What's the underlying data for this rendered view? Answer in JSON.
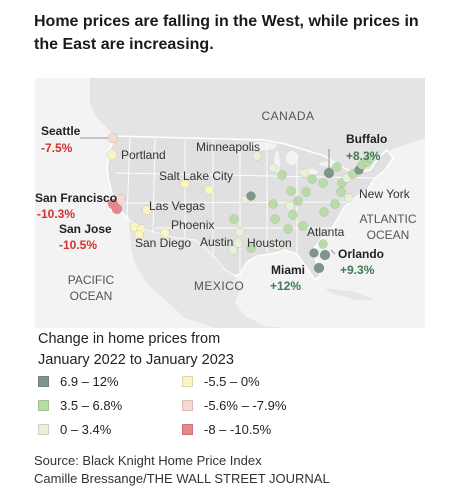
{
  "title": "Home prices are falling in the West, while prices in the East are increasing.",
  "regions": {
    "canada": "CANADA",
    "mexico": "MEXICO",
    "pacific_1": "PACIFIC",
    "pacific_2": "OCEAN",
    "atlantic_1": "ATLANTIC",
    "atlantic_2": "OCEAN"
  },
  "highlighted_cities": [
    {
      "name": "Seattle",
      "change": "-7.5%"
    },
    {
      "name": "San Francisco",
      "change": "-10.3%"
    },
    {
      "name": "San Jose",
      "change": "-10.5%"
    },
    {
      "name": "Buffalo",
      "change": "+8.3%"
    },
    {
      "name": "Orlando",
      "change": "+9.3%"
    },
    {
      "name": "Miami",
      "change": "+12%"
    }
  ],
  "city_labels": [
    "Portland",
    "Salt Lake City",
    "Las Vegas",
    "Phoenix",
    "San Diego",
    "Minneapolis",
    "Austin",
    "Houston",
    "Atlanta",
    "New York"
  ],
  "legend": {
    "title_line1": "Change in home prices from",
    "title_line2": "January 2022 to January 2023",
    "items": [
      {
        "label": "6.9 – 12%",
        "color": "#7e968a"
      },
      {
        "label": "3.5 – 6.8%",
        "color": "#b9dba6"
      },
      {
        "label": "0 – 3.4%",
        "color": "#e6f1d8"
      },
      {
        "label": "-5.5 – 0%",
        "color": "#fbf5c4"
      },
      {
        "label": "-5.6% – -7.9%",
        "color": "#f6d9cf"
      },
      {
        "label": "-8 – -10.5%",
        "color": "#e8868d"
      }
    ]
  },
  "colors": {
    "negative_text": "#d1322f",
    "positive_text": "#3f7a55",
    "land": "#e3e3e3",
    "water": "#f2f2f2",
    "border": "#ffffff"
  },
  "source_line1": "Source: Black Knight Home Price Index",
  "source_line2": "Camille Bressange/THE WALL STREET JOURNAL"
}
